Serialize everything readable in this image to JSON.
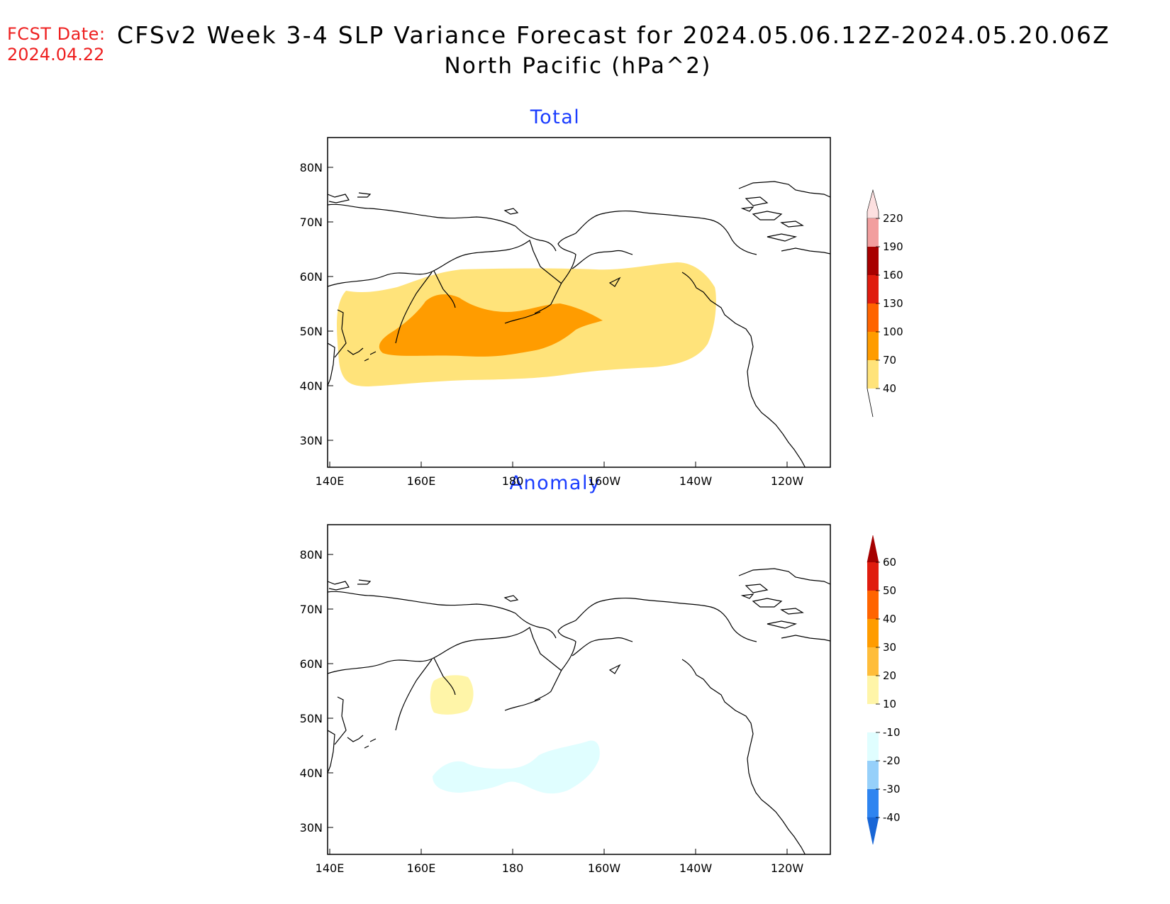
{
  "header": {
    "fcst_label": "FCST Date:",
    "fcst_date": "2024.04.22",
    "title": "CFSv2 Week 3-4 SLP Variance Forecast for 2024.05.06.12Z-2024.05.20.06Z",
    "subtitle": "North Pacific (hPa^2)"
  },
  "map": {
    "lat_labels": [
      "80N",
      "70N",
      "60N",
      "50N",
      "40N",
      "30N"
    ],
    "lon_labels": [
      "140E",
      "160E",
      "180",
      "160W",
      "140W",
      "120W"
    ]
  },
  "panels": [
    {
      "title": "Total",
      "colorbar": {
        "levels": [
          "220",
          "190",
          "160",
          "130",
          "100",
          "70",
          "40"
        ],
        "colors": [
          "#fde0e0",
          "#f29e9e",
          "#a80000",
          "#e01c0e",
          "#ff6400",
          "#ff9c00",
          "#ffe37a"
        ]
      },
      "contours": [
        {
          "range": "40-70",
          "color": "#ffe37a"
        },
        {
          "range": "70-100",
          "color": "#ff9c00"
        }
      ]
    },
    {
      "title": "Anomaly",
      "colorbar": {
        "levels": [
          "60",
          "50",
          "40",
          "30",
          "20",
          "10",
          "-10",
          "-20",
          "-30",
          "-40"
        ],
        "colors": [
          "#a50000",
          "#e01c0e",
          "#ff6400",
          "#ff9c00",
          "#ffbd3a",
          "#fff5a8",
          "#ffffff",
          "#e0feff",
          "#96d0fa",
          "#2e84f0",
          "#1866d6"
        ]
      },
      "contours": [
        {
          "range": "10-20",
          "color": "#fff5a8"
        },
        {
          "range": "-20--10",
          "color": "#e0feff"
        }
      ]
    }
  ]
}
